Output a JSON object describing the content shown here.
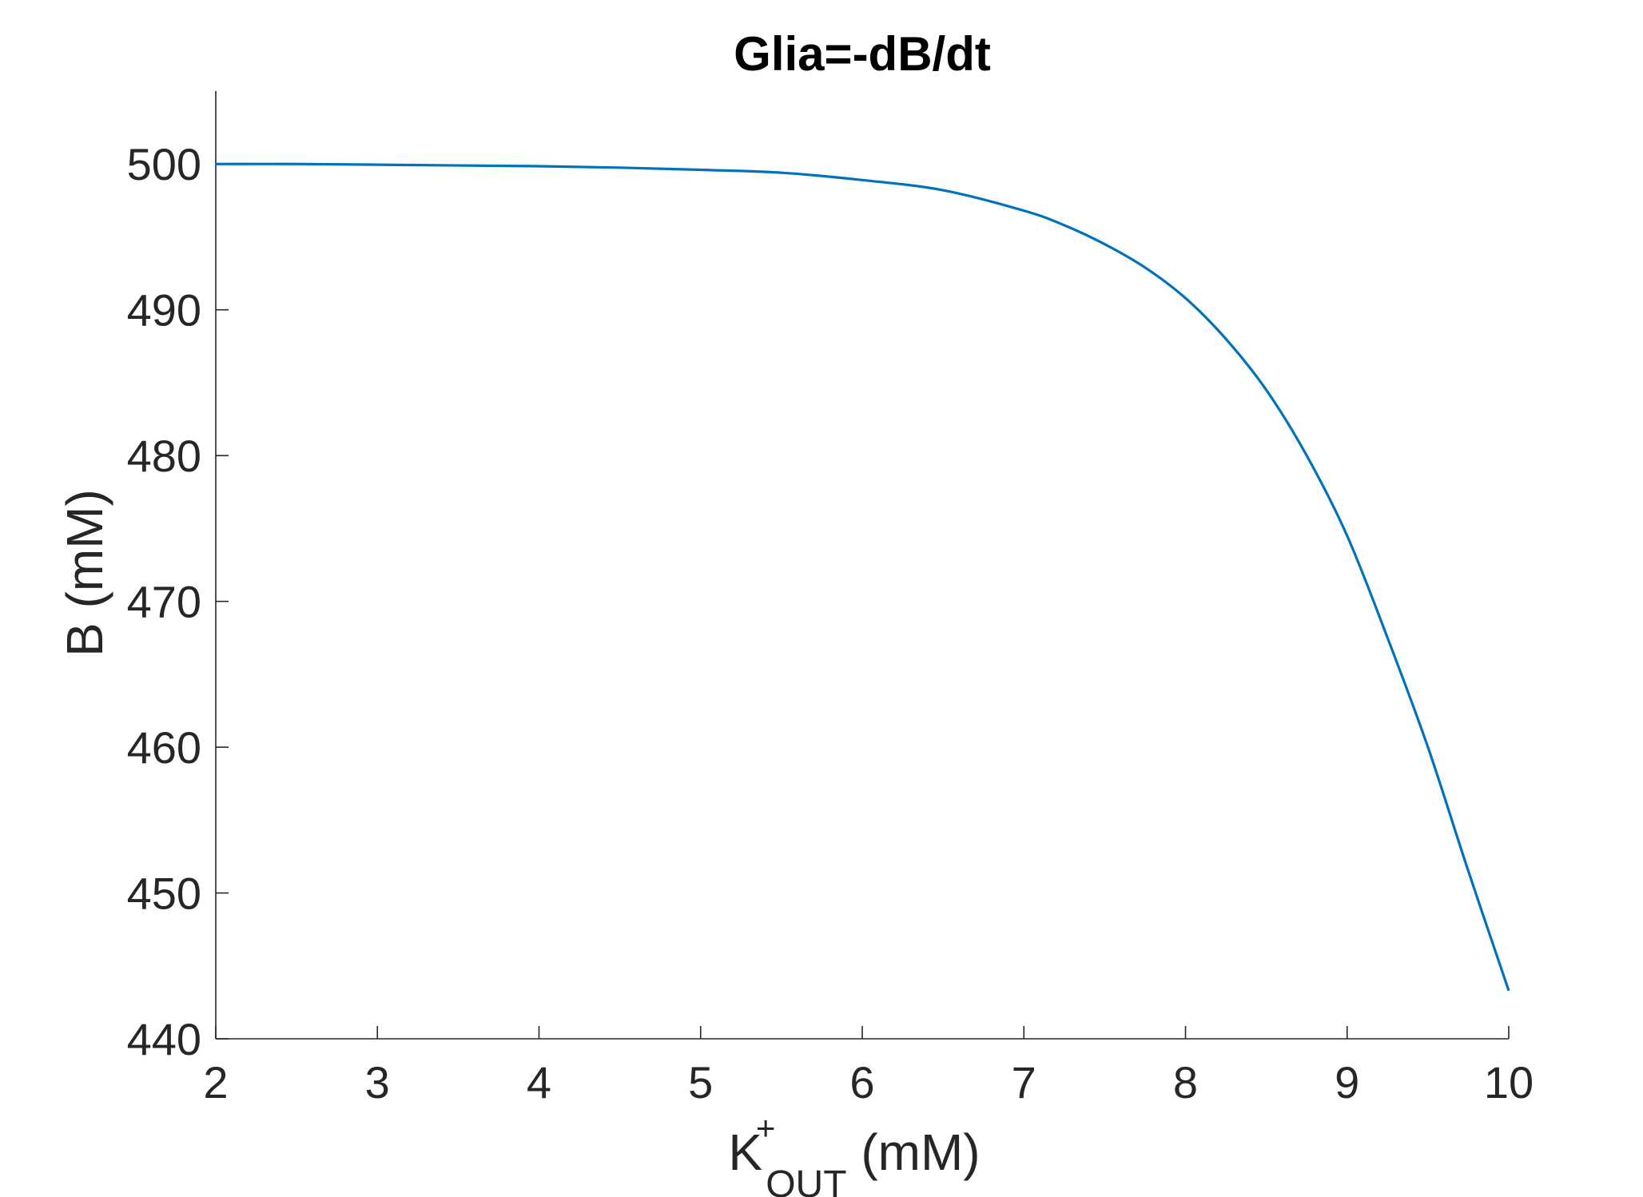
{
  "chart_data": {
    "type": "line",
    "title": "Glia=-dB/dt",
    "xlabel": {
      "main": "K",
      "superscript": "+",
      "subscript": "OUT",
      "unit": " (mM)"
    },
    "ylabel": "B (mM)",
    "xlim": [
      2,
      10
    ],
    "ylim": [
      440,
      505
    ],
    "xticks": [
      2,
      3,
      4,
      5,
      6,
      7,
      8,
      9,
      10
    ],
    "yticks": [
      440,
      450,
      460,
      470,
      480,
      490,
      500
    ],
    "xtick_labels": [
      "2",
      "3",
      "4",
      "5",
      "6",
      "7",
      "8",
      "9",
      "10"
    ],
    "ytick_labels": [
      "440",
      "450",
      "460",
      "470",
      "480",
      "490",
      "500"
    ],
    "grid": false,
    "line_color": "#0072BD",
    "axis_color": "#262626",
    "series": [
      {
        "x": [
          2,
          2.5,
          3,
          3.5,
          4,
          4.5,
          5,
          5.5,
          6,
          6.5,
          7,
          7.25,
          7.5,
          7.75,
          8,
          8.25,
          8.5,
          8.75,
          9,
          9.25,
          9.5,
          9.75,
          10
        ],
        "values": [
          500.0,
          500.0,
          499.95,
          499.9,
          499.85,
          499.75,
          499.6,
          499.4,
          498.9,
          498.2,
          496.8,
          495.8,
          494.5,
          492.9,
          490.8,
          488.0,
          484.5,
          480.0,
          474.5,
          467.5,
          460.0,
          451.5,
          443.3
        ]
      }
    ]
  }
}
